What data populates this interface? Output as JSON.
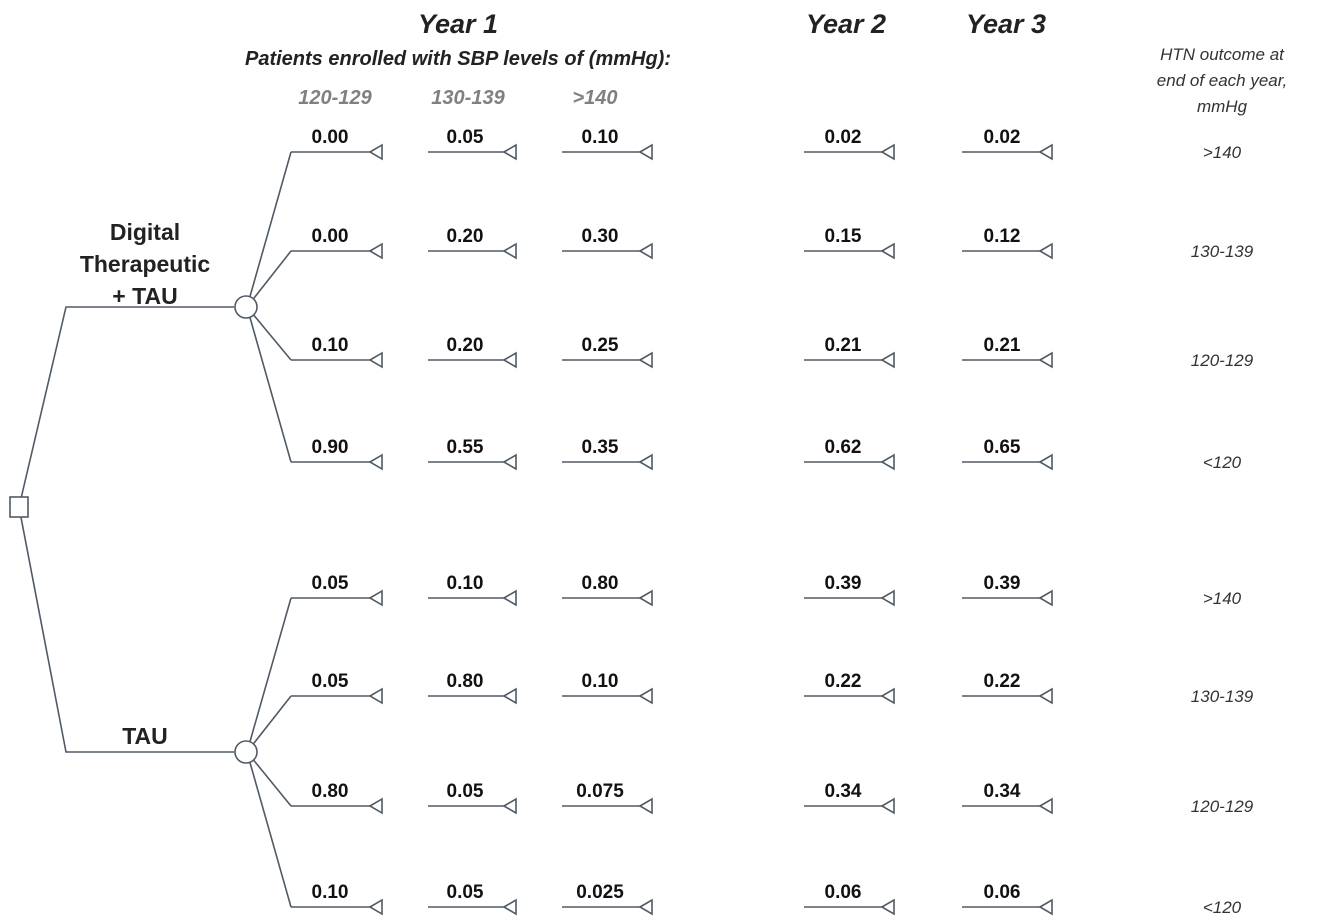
{
  "headers": {
    "year1": "Year 1",
    "year2": "Year 2",
    "year3": "Year 3",
    "subtitle": "Patients enrolled with SBP levels of (mmHg):",
    "sbp_columns": [
      "120-129",
      "130-139",
      ">140"
    ],
    "outcome_title": [
      "HTN outcome at",
      "end of each year,",
      "mmHg"
    ]
  },
  "arms": [
    {
      "label_lines": [
        "Digital",
        "Therapeutic",
        "+ TAU"
      ],
      "branches": [
        {
          "values": [
            "0.00",
            "0.05",
            "0.10",
            "0.02",
            "0.02"
          ],
          "outcome": ">140"
        },
        {
          "values": [
            "0.00",
            "0.20",
            "0.30",
            "0.15",
            "0.12"
          ],
          "outcome": "130-139"
        },
        {
          "values": [
            "0.10",
            "0.20",
            "0.25",
            "0.21",
            "0.21"
          ],
          "outcome": "120-129"
        },
        {
          "values": [
            "0.90",
            "0.55",
            "0.35",
            "0.62",
            "0.65"
          ],
          "outcome": "<120"
        }
      ]
    },
    {
      "label_lines": [
        "TAU"
      ],
      "branches": [
        {
          "values": [
            "0.05",
            "0.10",
            "0.80",
            "0.39",
            "0.39"
          ],
          "outcome": ">140"
        },
        {
          "values": [
            "0.05",
            "0.80",
            "0.10",
            "0.22",
            "0.22"
          ],
          "outcome": "130-139"
        },
        {
          "values": [
            "0.80",
            "0.05",
            "0.075",
            "0.34",
            "0.34"
          ],
          "outcome": "120-129"
        },
        {
          "values": [
            "0.10",
            "0.05",
            "0.025",
            "0.06",
            "0.06"
          ],
          "outcome": "<120"
        }
      ]
    }
  ]
}
